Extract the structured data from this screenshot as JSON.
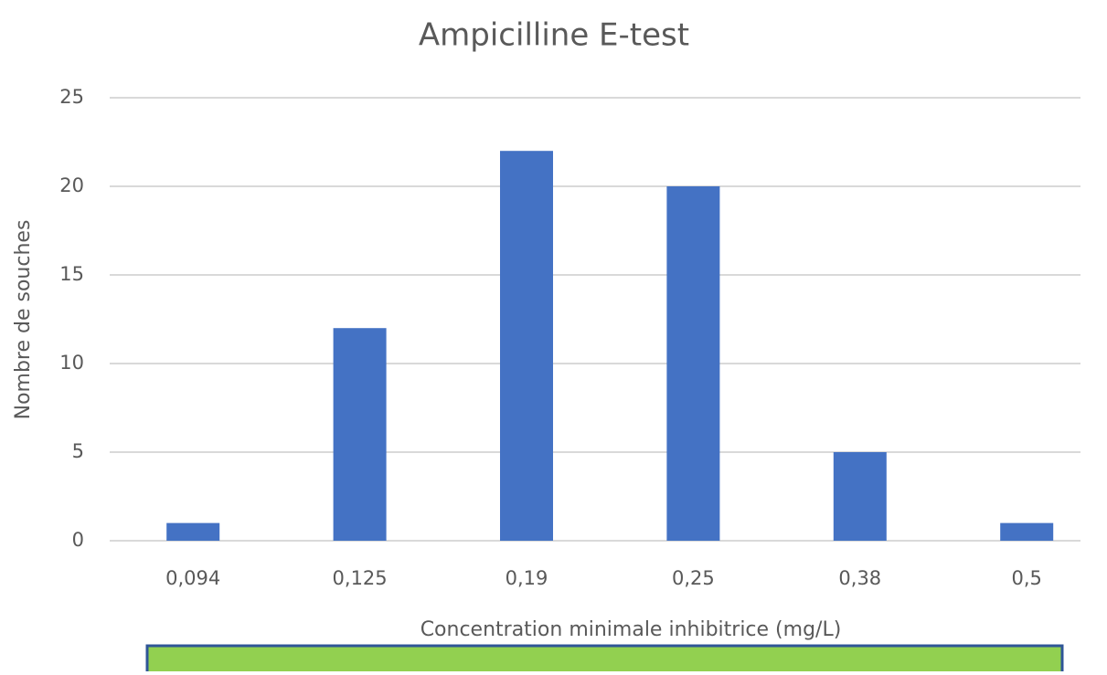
{
  "chart_data": {
    "type": "bar",
    "title": "Ampicilline E-test",
    "x_label": "Concentration minimale inhibitrice (mg/L)",
    "y_label": "Nombre de souches",
    "categories": [
      "0,094",
      "0,125",
      "0,19",
      "0,25",
      "0,38",
      "0,5"
    ],
    "values": [
      1,
      12,
      22,
      20,
      5,
      1
    ],
    "color": "#4472c4",
    "ylim": [
      0,
      25
    ],
    "yticks": [
      0,
      5,
      10,
      15,
      20,
      25
    ],
    "grid": true
  }
}
